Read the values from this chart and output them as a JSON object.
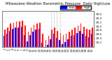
{
  "title": "Milwaukee Weather Barometric Pressure  Daily High/Low",
  "background_color": "#ffffff",
  "high_color": "#ff0000",
  "low_color": "#0000ff",
  "ylim": [
    29.0,
    30.75
  ],
  "ytick_values": [
    29.2,
    29.4,
    29.6,
    29.8,
    30.0,
    30.2,
    30.4,
    30.6
  ],
  "ytick_labels": [
    "29.2",
    "29.4",
    "29.6",
    "29.8",
    "30.0",
    "30.2",
    "30.4",
    "30.6"
  ],
  "n_days": 31,
  "highs": [
    29.85,
    29.92,
    30.12,
    30.18,
    30.22,
    30.25,
    30.28,
    30.02,
    29.72,
    29.95,
    30.08,
    30.12,
    30.18,
    29.62,
    29.32,
    29.52,
    29.82,
    29.92,
    29.78,
    29.68,
    29.58,
    29.62,
    29.72,
    29.82,
    29.92,
    30.02,
    30.12,
    29.98,
    29.88,
    29.82,
    29.92
  ],
  "lows": [
    29.52,
    29.62,
    29.78,
    29.88,
    29.92,
    29.95,
    29.98,
    29.58,
    29.28,
    29.58,
    29.72,
    29.82,
    29.88,
    29.18,
    29.0,
    29.08,
    29.38,
    29.62,
    29.42,
    29.32,
    29.12,
    29.22,
    29.38,
    29.52,
    29.58,
    29.68,
    29.78,
    29.62,
    29.52,
    29.48,
    29.62
  ],
  "xlabel_labels": [
    "1",
    "2",
    "3",
    "4",
    "5",
    "6",
    "7",
    "8",
    "9",
    "10",
    "11",
    "12",
    "13",
    "14",
    "15",
    "16",
    "17",
    "18",
    "19",
    "20",
    "21",
    "22",
    "23",
    "24",
    "25",
    "26",
    "27",
    "28",
    "29",
    "30",
    "31"
  ],
  "dashed_lines": [
    17,
    18,
    19,
    20
  ],
  "legend_high": "High",
  "legend_low": "Low",
  "title_fontsize": 3.8,
  "tick_fontsize": 3.0,
  "legend_fontsize": 3.0,
  "bar_width": 0.38
}
